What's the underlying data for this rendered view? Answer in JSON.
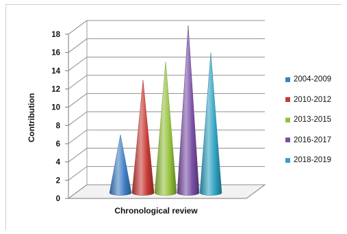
{
  "chart_data": {
    "type": "bar",
    "categories": [
      ""
    ],
    "series": [
      {
        "name": "2004-2009",
        "values": [
          6
        ],
        "color": "#3f7fc5"
      },
      {
        "name": "2010-2012",
        "values": [
          12
        ],
        "color": "#c83a35"
      },
      {
        "name": "2013-2015",
        "values": [
          14
        ],
        "color": "#93c13b"
      },
      {
        "name": "2016-2017",
        "values": [
          18
        ],
        "color": "#7a4fa5"
      },
      {
        "name": "2018-2019",
        "values": [
          15
        ],
        "color": "#2fa3c2"
      }
    ],
    "title": "",
    "xlabel": "Chronological review",
    "ylabel": "Contribution",
    "ylim": [
      0,
      18
    ],
    "yticks": [
      0,
      2,
      4,
      6,
      8,
      10,
      12,
      14,
      16,
      18
    ],
    "grid": true,
    "legend": "right",
    "shape": "cone-3d"
  }
}
